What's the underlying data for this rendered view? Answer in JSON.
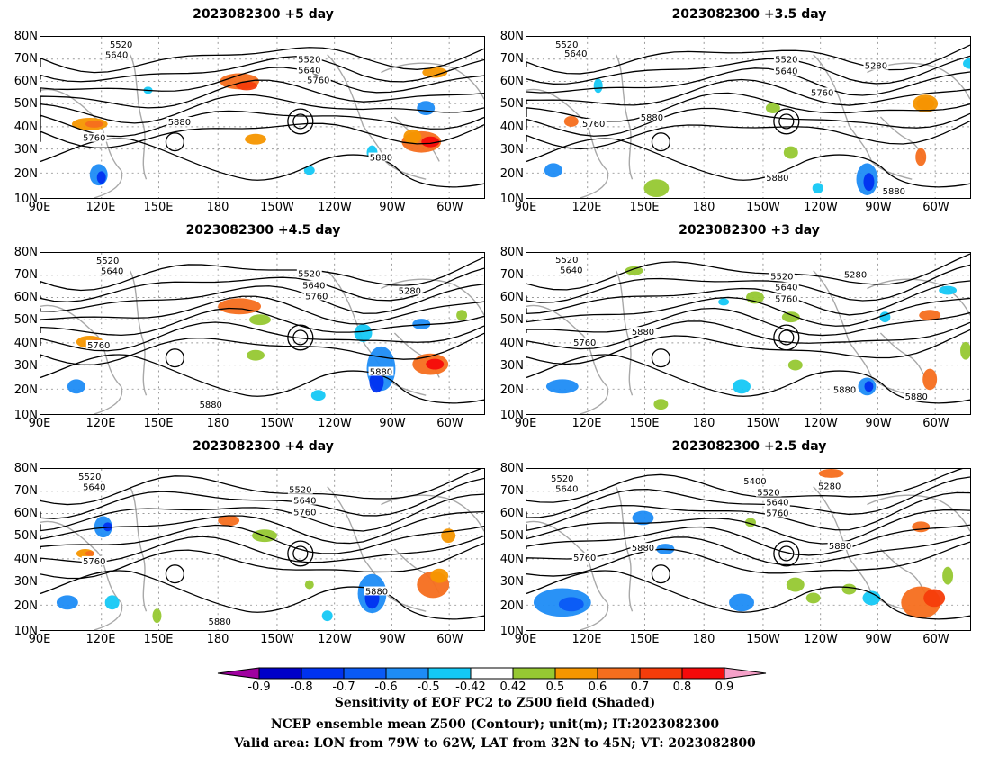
{
  "panels": [
    {
      "title": "2023082300 +5 day"
    },
    {
      "title": "2023082300 +3.5 day"
    },
    {
      "title": "2023082300 +4.5 day"
    },
    {
      "title": "2023082300 +3 day"
    },
    {
      "title": "2023082300 +4 day"
    },
    {
      "title": "2023082300 +2.5 day"
    }
  ],
  "axes": {
    "lat_labels": [
      "80N",
      "70N",
      "60N",
      "50N",
      "40N",
      "30N",
      "20N",
      "10N"
    ],
    "lon_labels": [
      "90E",
      "120E",
      "150E",
      "180",
      "150W",
      "120W",
      "90W",
      "60W"
    ]
  },
  "contour_labels": {
    "p0": [
      "5520",
      "5640",
      "5520",
      "5640",
      "5760",
      "5880",
      "5760",
      "5880"
    ],
    "p1": [
      "5520",
      "5640",
      "5520",
      "5640",
      "5280",
      "5760",
      "5760",
      "5880",
      "5880",
      "5880"
    ],
    "p2": [
      "5520",
      "5640",
      "5520",
      "5640",
      "5760",
      "5280",
      "5760",
      "5880",
      "5880"
    ],
    "p3": [
      "5520",
      "5640",
      "5520",
      "5640",
      "5280",
      "5760",
      "5760",
      "5880",
      "5880",
      "5880"
    ],
    "p4": [
      "5520",
      "5640",
      "5520",
      "5640",
      "5760",
      "5760",
      "5880",
      "5880"
    ],
    "p5": [
      "5520",
      "5640",
      "5400",
      "5520",
      "5280",
      "5640",
      "5760",
      "5760",
      "5880",
      "5880"
    ]
  },
  "colorbar": {
    "labels": [
      "-0.9",
      "-0.8",
      "-0.7",
      "-0.6",
      "-0.5",
      "-0.42",
      "0.42",
      "0.5",
      "0.6",
      "0.7",
      "0.8",
      "0.9"
    ],
    "colors": [
      "#0000c8",
      "#0032f0",
      "#0a5af5",
      "#1e8cf5",
      "#14c8f5",
      "#ffffff",
      "#96c832",
      "#f59600",
      "#f56e1e",
      "#f53c0a",
      "#f50a0a"
    ],
    "low_color": "#a000a0",
    "high_color": "#f5a0c8"
  },
  "footer": {
    "line1": "Sensitivity of EOF PC2 to Z500 field (Shaded)",
    "line2": "NCEP ensemble mean Z500 (Contour); unit(m); IT:2023082300",
    "line3": "Valid area: LON from 79W to 62W, LAT from 32N to 45N; VT: 2023082800"
  }
}
